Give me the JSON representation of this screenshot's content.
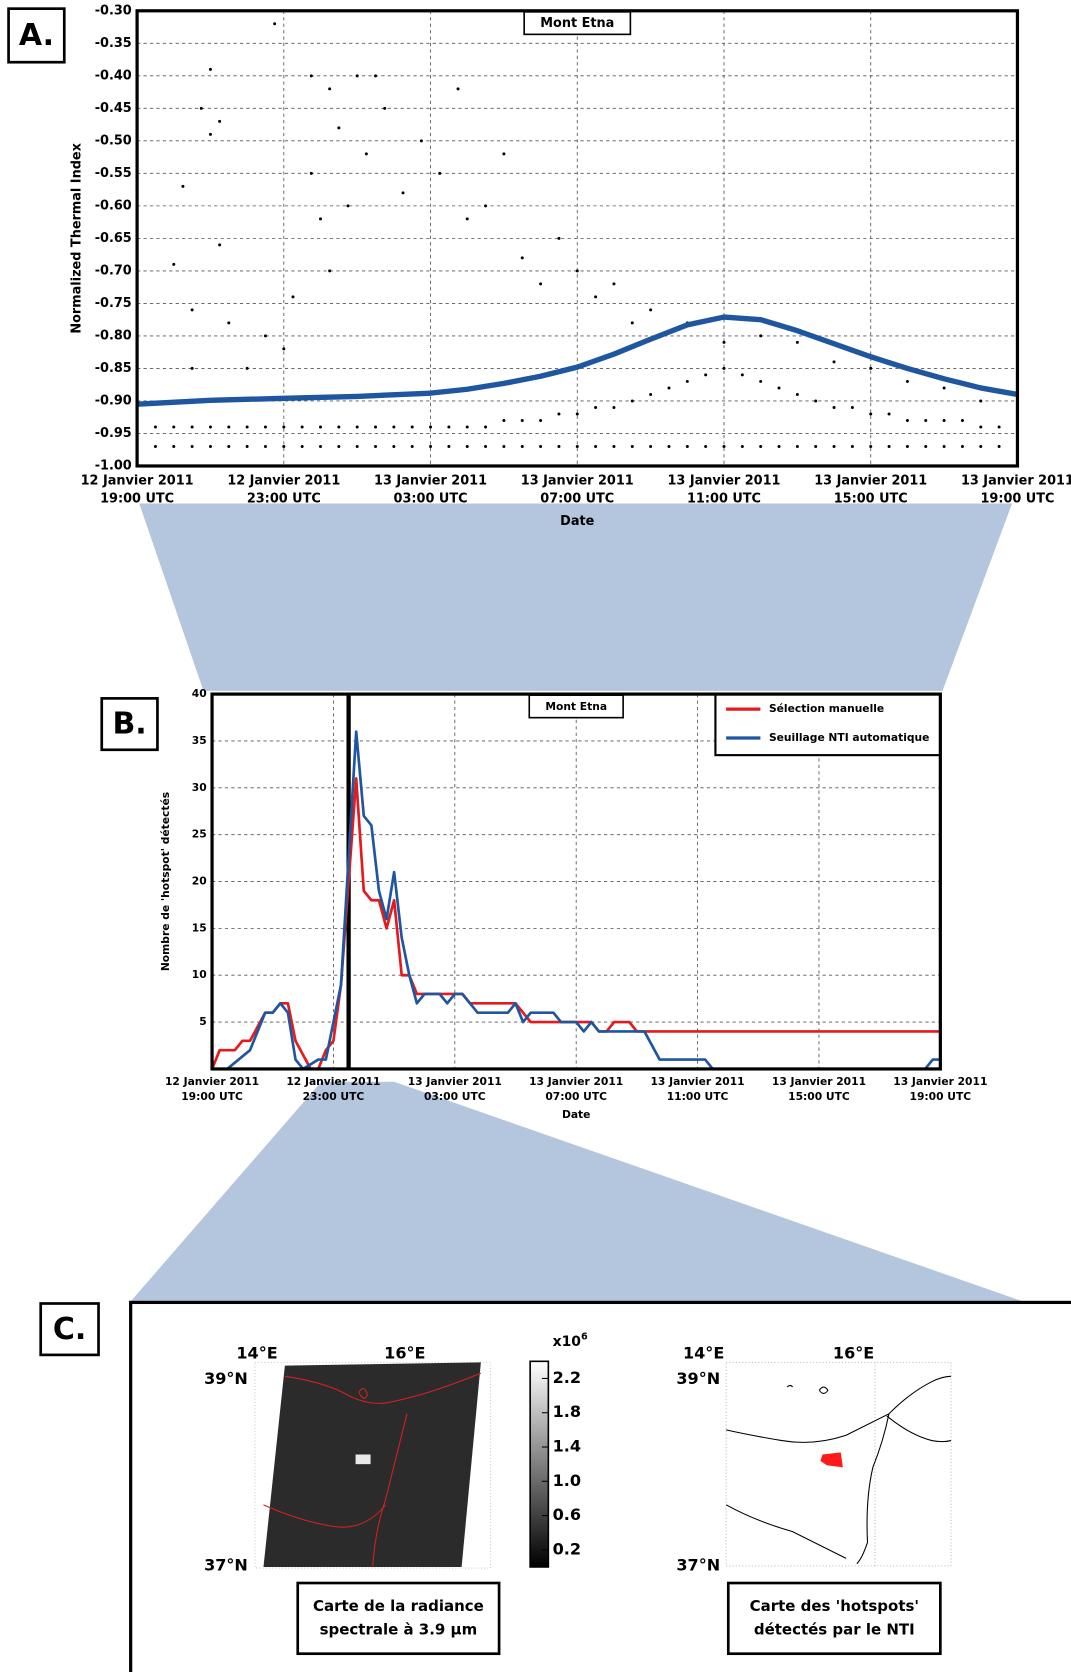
{
  "panel_labels": [
    "A.",
    "B.",
    "C."
  ],
  "chart_data": [
    {
      "type": "scatter",
      "title": "Mont Etna",
      "ylabel": "Normalized Thermal Index",
      "xlabel": "Date",
      "xlim": [
        "2011-01-12T19:00",
        "2011-01-13T19:00"
      ],
      "ylim": [
        -1.0,
        -0.3
      ],
      "grid": true,
      "xticks": [
        {
          "value": "2011-01-12T19:00",
          "label": [
            "12 Janvier 2011",
            "19:00 UTC"
          ]
        },
        {
          "value": "2011-01-12T23:00",
          "label": [
            "12 Janvier 2011",
            "23:00 UTC"
          ]
        },
        {
          "value": "2011-01-13T03:00",
          "label": [
            "13 Janvier 2011",
            "03:00 UTC"
          ]
        },
        {
          "value": "2011-01-13T07:00",
          "label": [
            "13 Janvier 2011",
            "07:00 UTC"
          ]
        },
        {
          "value": "2011-01-13T11:00",
          "label": [
            "13 Janvier 2011",
            "11:00 UTC"
          ]
        },
        {
          "value": "2011-01-13T15:00",
          "label": [
            "13 Janvier 2011",
            "15:00 UTC"
          ]
        },
        {
          "value": "2011-01-13T19:00",
          "label": [
            "13 Janvier 2011",
            "19:00 UTC"
          ]
        }
      ],
      "yticks": [
        {
          "value": -1.0,
          "label": "-1.00"
        },
        {
          "value": -0.95,
          "label": "-0.95"
        },
        {
          "value": -0.9,
          "label": "-0.90"
        },
        {
          "value": -0.85,
          "label": "-0.85"
        },
        {
          "value": -0.8,
          "label": "-0.80"
        },
        {
          "value": -0.75,
          "label": "-0.75"
        },
        {
          "value": -0.7,
          "label": "-0.70"
        },
        {
          "value": -0.65,
          "label": "-0.65"
        },
        {
          "value": -0.6,
          "label": "-0.60"
        },
        {
          "value": -0.55,
          "label": "-0.55"
        },
        {
          "value": -0.5,
          "label": "-0.50"
        },
        {
          "value": -0.45,
          "label": "-0.45"
        },
        {
          "value": -0.4,
          "label": "-0.40"
        },
        {
          "value": -0.35,
          "label": "-0.35"
        },
        {
          "value": -0.3,
          "label": "-0.30"
        }
      ],
      "series": [
        {
          "type": "scatter",
          "color": "#000000",
          "x": [
            "2011-01-12T19:00",
            "2011-01-12T19:30",
            "2011-01-12T20:00",
            "2011-01-12T20:30",
            "2011-01-12T21:00",
            "2011-01-12T21:30",
            "2011-01-12T22:00",
            "2011-01-12T22:30",
            "2011-01-12T23:00",
            "2011-01-12T23:30",
            "2011-01-13T00:00",
            "2011-01-13T00:30",
            "2011-01-13T01:00",
            "2011-01-13T01:30",
            "2011-01-13T02:00",
            "2011-01-13T02:30",
            "2011-01-13T03:00",
            "2011-01-13T03:30",
            "2011-01-13T04:00",
            "2011-01-13T04:30",
            "2011-01-13T05:00",
            "2011-01-13T05:30",
            "2011-01-13T06:00",
            "2011-01-13T06:30",
            "2011-01-13T07:00",
            "2011-01-13T07:30",
            "2011-01-13T08:00",
            "2011-01-13T08:30",
            "2011-01-13T09:00",
            "2011-01-13T09:30",
            "2011-01-13T10:00",
            "2011-01-13T10:30",
            "2011-01-13T11:00",
            "2011-01-13T11:30",
            "2011-01-13T12:00",
            "2011-01-13T12:30",
            "2011-01-13T13:00",
            "2011-01-13T13:30",
            "2011-01-13T14:00",
            "2011-01-13T14:30",
            "2011-01-13T15:00",
            "2011-01-13T15:30",
            "2011-01-13T16:00",
            "2011-01-13T16:30",
            "2011-01-13T17:00",
            "2011-01-13T17:30",
            "2011-01-13T18:00",
            "2011-01-13T18:30",
            "2011-01-13T19:00",
            "2011-01-12T19:00",
            "2011-01-12T19:30",
            "2011-01-12T20:00",
            "2011-01-12T20:30",
            "2011-01-12T21:00",
            "2011-01-12T21:30",
            "2011-01-12T22:00",
            "2011-01-12T22:30",
            "2011-01-12T23:00",
            "2011-01-12T23:30",
            "2011-01-13T00:00",
            "2011-01-13T00:30",
            "2011-01-13T01:00",
            "2011-01-13T01:30",
            "2011-01-13T02:00",
            "2011-01-13T02:30",
            "2011-01-13T03:00",
            "2011-01-13T03:30",
            "2011-01-13T04:00",
            "2011-01-13T04:30",
            "2011-01-13T05:00",
            "2011-01-13T05:30",
            "2011-01-13T06:00",
            "2011-01-13T06:30",
            "2011-01-13T07:00",
            "2011-01-13T07:30",
            "2011-01-13T08:00",
            "2011-01-13T08:30",
            "2011-01-13T09:00",
            "2011-01-13T09:30",
            "2011-01-13T10:00",
            "2011-01-13T10:30",
            "2011-01-13T11:00",
            "2011-01-13T11:30",
            "2011-01-13T12:00",
            "2011-01-13T12:30",
            "2011-01-13T13:00",
            "2011-01-13T13:30",
            "2011-01-13T14:00",
            "2011-01-13T14:30",
            "2011-01-13T15:00",
            "2011-01-13T15:30",
            "2011-01-13T16:00",
            "2011-01-13T16:30",
            "2011-01-13T17:00",
            "2011-01-13T17:30",
            "2011-01-13T18:00",
            "2011-01-13T18:30",
            "2011-01-13T19:00",
            "2011-01-12T20:00",
            "2011-01-12T20:15",
            "2011-01-12T20:45",
            "2011-01-12T21:00",
            "2011-01-12T21:00",
            "2011-01-12T21:15",
            "2011-01-12T21:15",
            "2011-01-12T20:30",
            "2011-01-12T20:30",
            "2011-01-12T21:30",
            "2011-01-12T22:45",
            "2011-01-12T22:30",
            "2011-01-12T23:45",
            "2011-01-12T23:45",
            "2011-01-13T00:00",
            "2011-01-13T00:15",
            "2011-01-13T00:15",
            "2011-01-13T00:30",
            "2011-01-13T00:45",
            "2011-01-13T01:00",
            "2011-01-13T01:15",
            "2011-01-13T01:30",
            "2011-01-13T01:45",
            "2011-01-13T02:15",
            "2011-01-13T02:45",
            "2011-01-13T03:15",
            "2011-01-13T03:45",
            "2011-01-13T04:00",
            "2011-01-13T04:30",
            "2011-01-13T05:00",
            "2011-01-13T05:30",
            "2011-01-13T06:00",
            "2011-01-13T06:30",
            "2011-01-13T07:00",
            "2011-01-13T07:30",
            "2011-01-13T08:00",
            "2011-01-13T08:30",
            "2011-01-13T09:00",
            "2011-01-13T10:00",
            "2011-01-13T11:00",
            "2011-01-13T12:00",
            "2011-01-13T13:00",
            "2011-01-13T14:00",
            "2011-01-13T15:00",
            "2011-01-13T16:00",
            "2011-01-13T17:00",
            "2011-01-13T18:00",
            "2011-01-12T22:00",
            "2011-01-12T23:00",
            "2011-01-12T23:15"
          ],
          "y": [
            -0.94,
            -0.94,
            -0.94,
            -0.94,
            -0.94,
            -0.94,
            -0.94,
            -0.94,
            -0.94,
            -0.94,
            -0.94,
            -0.94,
            -0.94,
            -0.94,
            -0.94,
            -0.94,
            -0.94,
            -0.94,
            -0.94,
            -0.94,
            -0.93,
            -0.93,
            -0.93,
            -0.92,
            -0.92,
            -0.91,
            -0.91,
            -0.9,
            -0.89,
            -0.88,
            -0.87,
            -0.86,
            -0.85,
            -0.86,
            -0.87,
            -0.88,
            -0.89,
            -0.9,
            -0.91,
            -0.91,
            -0.92,
            -0.92,
            -0.93,
            -0.93,
            -0.93,
            -0.93,
            -0.94,
            -0.94,
            -0.94,
            -0.97,
            -0.97,
            -0.97,
            -0.97,
            -0.97,
            -0.97,
            -0.97,
            -0.97,
            -0.97,
            -0.97,
            -0.97,
            -0.97,
            -0.97,
            -0.97,
            -0.97,
            -0.97,
            -0.97,
            -0.97,
            -0.97,
            -0.97,
            -0.97,
            -0.97,
            -0.97,
            -0.97,
            -0.97,
            -0.97,
            -0.97,
            -0.97,
            -0.97,
            -0.97,
            -0.97,
            -0.97,
            -0.97,
            -0.97,
            -0.97,
            -0.97,
            -0.97,
            -0.97,
            -0.97,
            -0.97,
            -0.97,
            -0.97,
            -0.97,
            -0.97,
            -0.97,
            -0.97,
            -0.97,
            -0.97,
            -0.97,
            -0.69,
            -0.57,
            -0.45,
            -0.39,
            -0.49,
            -0.47,
            -0.66,
            -0.76,
            -0.85,
            -0.78,
            -0.32,
            -0.8,
            -0.4,
            -0.55,
            -0.62,
            -0.42,
            -0.7,
            -0.48,
            -0.6,
            -0.4,
            -0.52,
            -0.4,
            -0.45,
            -0.58,
            -0.5,
            -0.55,
            -0.42,
            -0.62,
            -0.6,
            -0.52,
            -0.68,
            -0.72,
            -0.65,
            -0.7,
            -0.74,
            -0.72,
            -0.78,
            -0.76,
            -0.78,
            -0.81,
            -0.8,
            -0.81,
            -0.84,
            -0.85,
            -0.87,
            -0.88,
            -0.9,
            -0.85,
            -0.82,
            -0.74
          ]
        },
        {
          "type": "line",
          "color": "#1f56a0",
          "x": [
            "2011-01-12T19:00",
            "2011-01-12T21:00",
            "2011-01-12T23:00",
            "2011-01-13T01:00",
            "2011-01-13T03:00",
            "2011-01-13T04:00",
            "2011-01-13T05:00",
            "2011-01-13T06:00",
            "2011-01-13T07:00",
            "2011-01-13T08:00",
            "2011-01-13T09:00",
            "2011-01-13T10:00",
            "2011-01-13T11:00",
            "2011-01-13T12:00",
            "2011-01-13T13:00",
            "2011-01-13T14:00",
            "2011-01-13T15:00",
            "2011-01-13T16:00",
            "2011-01-13T17:00",
            "2011-01-13T18:00",
            "2011-01-13T19:00"
          ],
          "y": [
            -0.905,
            -0.899,
            -0.896,
            -0.893,
            -0.888,
            -0.882,
            -0.873,
            -0.862,
            -0.848,
            -0.828,
            -0.805,
            -0.783,
            -0.771,
            -0.775,
            -0.792,
            -0.812,
            -0.832,
            -0.85,
            -0.866,
            -0.88,
            -0.89
          ]
        }
      ]
    },
    {
      "type": "line",
      "title": "Mont Etna",
      "ylabel": "Nombre de 'hotspot' détectés",
      "xlabel": "Date",
      "xlim": [
        "2011-01-12T19:00",
        "2011-01-13T19:00"
      ],
      "ylim": [
        0,
        40
      ],
      "grid": true,
      "legend": "top-right",
      "highlight_x": "2011-01-12T23:30",
      "xticks": [
        {
          "value": "2011-01-12T19:00",
          "label": [
            "12 Janvier 2011",
            "19:00 UTC"
          ]
        },
        {
          "value": "2011-01-12T23:00",
          "label": [
            "12 Janvier 2011",
            "23:00 UTC"
          ]
        },
        {
          "value": "2011-01-13T03:00",
          "label": [
            "13 Janvier 2011",
            "03:00 UTC"
          ]
        },
        {
          "value": "2011-01-13T07:00",
          "label": [
            "13 Janvier 2011",
            "07:00 UTC"
          ]
        },
        {
          "value": "2011-01-13T11:00",
          "label": [
            "13 Janvier 2011",
            "11:00 UTC"
          ]
        },
        {
          "value": "2011-01-13T15:00",
          "label": [
            "13 Janvier 2011",
            "15:00 UTC"
          ]
        },
        {
          "value": "2011-01-13T19:00",
          "label": [
            "13 Janvier 2011",
            "19:00 UTC"
          ]
        }
      ],
      "yticks": [
        5,
        10,
        15,
        20,
        25,
        30,
        35,
        40
      ],
      "series": [
        {
          "name": "Sélection manuelle",
          "color": "#e41a1c",
          "x": [
            "2011-01-12T19:00",
            "2011-01-12T19:15",
            "2011-01-12T19:45",
            "2011-01-12T20:00",
            "2011-01-12T20:15",
            "2011-01-12T20:45",
            "2011-01-12T21:00",
            "2011-01-12T21:15",
            "2011-01-12T21:30",
            "2011-01-12T21:45",
            "2011-01-12T22:15",
            "2011-01-12T22:30",
            "2011-01-12T22:45",
            "2011-01-12T23:00",
            "2011-01-12T23:15",
            "2011-01-12T23:30",
            "2011-01-12T23:45",
            "2011-01-13T00:00",
            "2011-01-13T00:15",
            "2011-01-13T00:30",
            "2011-01-13T00:45",
            "2011-01-13T01:00",
            "2011-01-13T01:15",
            "2011-01-13T01:30",
            "2011-01-13T01:45",
            "2011-01-13T03:15",
            "2011-01-13T03:30",
            "2011-01-13T05:00",
            "2011-01-13T05:15",
            "2011-01-13T05:30",
            "2011-01-13T07:30",
            "2011-01-13T07:45",
            "2011-01-13T08:00",
            "2011-01-13T08:15",
            "2011-01-13T08:45",
            "2011-01-13T09:00",
            "2011-01-13T19:00"
          ],
          "values": [
            0,
            2,
            2,
            3,
            3,
            6,
            6,
            7,
            7,
            3,
            0,
            0,
            2,
            3,
            9,
            20,
            31,
            19,
            18,
            18,
            15,
            18,
            10,
            10,
            8,
            8,
            7,
            7,
            6,
            5,
            5,
            4,
            4,
            5,
            5,
            4,
            4
          ]
        },
        {
          "name": "Seuillage NTI automatique",
          "color": "#1f56a0",
          "x": [
            "2011-01-12T19:30",
            "2011-01-12T20:15",
            "2011-01-12T20:45",
            "2011-01-12T21:00",
            "2011-01-12T21:15",
            "2011-01-12T21:30",
            "2011-01-12T21:45",
            "2011-01-12T22:00",
            "2011-01-12T22:30",
            "2011-01-12T22:45",
            "2011-01-12T23:00",
            "2011-01-12T23:15",
            "2011-01-12T23:45",
            "2011-01-13T00:00",
            "2011-01-13T00:15",
            "2011-01-13T00:30",
            "2011-01-13T00:45",
            "2011-01-13T01:00",
            "2011-01-13T01:15",
            "2011-01-13T01:30",
            "2011-01-13T01:45",
            "2011-01-13T02:00",
            "2011-01-13T02:30",
            "2011-01-13T02:45",
            "2011-01-13T03:00",
            "2011-01-13T03:15",
            "2011-01-13T03:30",
            "2011-01-13T03:45",
            "2011-01-13T04:45",
            "2011-01-13T05:00",
            "2011-01-13T05:15",
            "2011-01-13T05:30",
            "2011-01-13T06:15",
            "2011-01-13T06:30",
            "2011-01-13T07:00",
            "2011-01-13T07:15",
            "2011-01-13T07:30",
            "2011-01-13T07:45",
            "2011-01-13T09:15",
            "2011-01-13T09:45",
            "2011-01-13T11:15",
            "2011-01-13T11:30",
            "2011-01-13T18:30",
            "2011-01-13T18:45",
            "2011-01-13T19:00"
          ],
          "values": [
            0,
            2,
            6,
            6,
            7,
            6,
            1,
            0,
            1,
            1,
            5,
            9,
            36,
            27,
            26,
            19,
            16,
            21,
            14,
            10,
            7,
            8,
            8,
            7,
            8,
            8,
            7,
            6,
            6,
            7,
            5,
            6,
            6,
            5,
            5,
            4,
            5,
            4,
            4,
            1,
            1,
            0,
            0,
            1,
            1
          ]
        }
      ]
    }
  ],
  "panel_c": {
    "lon_labels": [
      "14°E",
      "16°E"
    ],
    "lat_labels": [
      "39°N",
      "37°N"
    ],
    "colorbar": {
      "unit": "x10",
      "exponent": "6",
      "lim": [
        0,
        2.4
      ],
      "ticks": [
        2.2,
        1.8,
        1.4,
        {
          "value": 1.0,
          "label": "1.0"
        },
        0.6,
        0.2
      ]
    },
    "caption_left": [
      "Carte de la radiance",
      "spectrale à 3.9 µm"
    ],
    "caption_right": [
      "Carte des 'hotspots'",
      "détectés par le NTI"
    ]
  }
}
